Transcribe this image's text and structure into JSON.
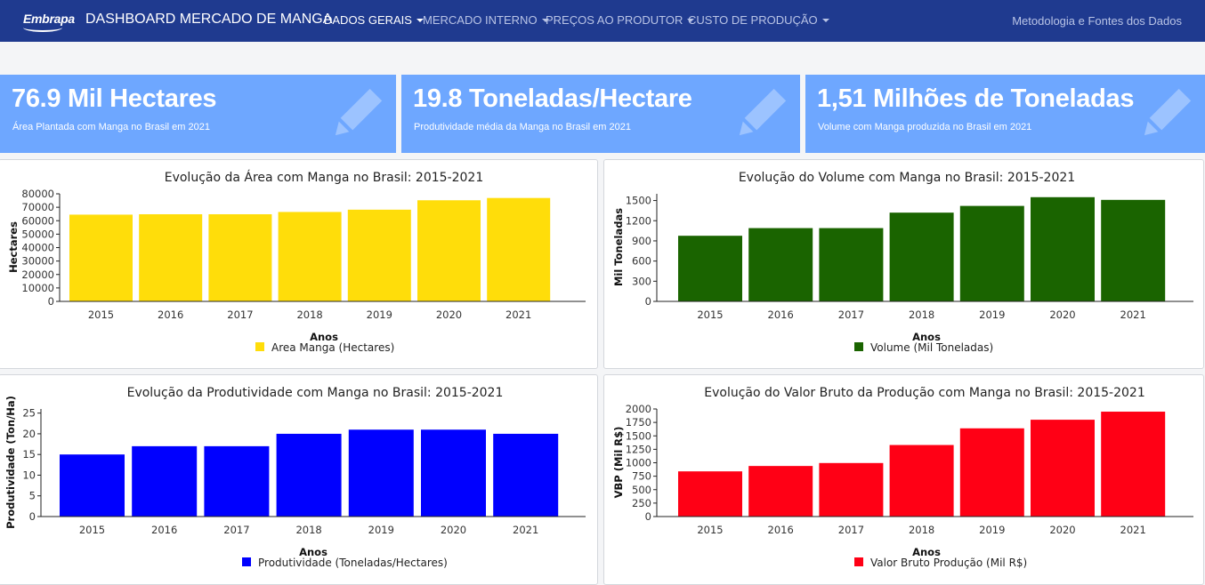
{
  "nav": {
    "logo": "Embrapa",
    "brand": "DASHBOARD MERCADO DE MANGA",
    "menu": [
      {
        "label": "DADOS GERAIS",
        "active": true
      },
      {
        "label": "MERCADO INTERNO",
        "active": false
      },
      {
        "label": "PREÇOS AO PRODUTOR",
        "active": false
      },
      {
        "label": "CUSTO DE PRODUÇÃO",
        "active": false
      }
    ],
    "methodology": "Metodologia e Fontes dos Dados"
  },
  "kpis": [
    {
      "value": "76.9 Mil Hectares",
      "label": "Área Plantada com Manga no Brasil em 2021",
      "icon": "pencil-icon"
    },
    {
      "value": "19.8 Toneladas/Hectare",
      "label": "Produtividade média da Manga no Brasil em 2021",
      "icon": "pencil-icon"
    },
    {
      "value": "1,51 Milhões de Toneladas",
      "label": "Volume com Manga produzida no Brasil em 2021",
      "icon": "pencil-icon"
    }
  ],
  "colors": {
    "navbar": "#1f3a8f",
    "kpi": "#6ea7ff"
  },
  "chart_data": [
    {
      "type": "bar",
      "title": "Evolução da Área com Manga no Brasil: 2015-2021",
      "xlabel": "Anos",
      "ylabel": "Hectares",
      "categories": [
        "2015",
        "2016",
        "2017",
        "2018",
        "2019",
        "2020",
        "2021"
      ],
      "series": [
        {
          "name": "Area Manga (Hectares)",
          "color": "#ffdd0a",
          "values": [
            64500,
            64800,
            64800,
            66500,
            68200,
            75200,
            76900
          ]
        }
      ],
      "ylim": [
        0,
        80000
      ],
      "yticks": [
        0,
        10000,
        20000,
        30000,
        40000,
        50000,
        60000,
        70000,
        80000
      ],
      "legend": "bottom-center",
      "grid": false
    },
    {
      "type": "bar",
      "title": "Evolução do Volume com Manga no Brasil: 2015-2021",
      "xlabel": "Anos",
      "ylabel": "Mil Toneladas",
      "categories": [
        "2015",
        "2016",
        "2017",
        "2018",
        "2019",
        "2020",
        "2021"
      ],
      "series": [
        {
          "name": "Volume (Mil Toneladas)",
          "color": "#1a6400",
          "values": [
            976,
            1090,
            1090,
            1320,
            1420,
            1550,
            1510
          ]
        }
      ],
      "ylim": [
        0,
        1600
      ],
      "yticks": [
        0,
        300,
        600,
        900,
        1200,
        1500
      ],
      "legend": "bottom-center",
      "grid": false
    },
    {
      "type": "bar",
      "title": "Evolução da Produtividade com Manga no Brasil: 2015-2021",
      "xlabel": "Anos",
      "ylabel": "Produtividade (Ton/Ha)",
      "categories": [
        "2015",
        "2016",
        "2017",
        "2018",
        "2019",
        "2020",
        "2021"
      ],
      "series": [
        {
          "name": "Produtividade (Toneladas/Hectares)",
          "color": "#0000ff",
          "values": [
            15,
            17,
            17,
            20,
            21,
            21,
            20
          ]
        }
      ],
      "ylim": [
        0,
        26
      ],
      "yticks": [
        0,
        5,
        10,
        15,
        20,
        25
      ],
      "legend": "bottom-center",
      "grid": false
    },
    {
      "type": "bar",
      "title": "Evolução do Valor Bruto da Produção com Manga no Brasil: 2015-2021",
      "xlabel": "Anos",
      "ylabel": "VBP (Mil R$)",
      "categories": [
        "2015",
        "2016",
        "2017",
        "2018",
        "2019",
        "2020",
        "2021"
      ],
      "series": [
        {
          "name": "Valor Bruto Produção (Mil R$)",
          "color": "#ff0015",
          "values": [
            840,
            940,
            995,
            1330,
            1640,
            1800,
            1950
          ]
        }
      ],
      "ylim": [
        0,
        2000
      ],
      "yticks": [
        0,
        250,
        500,
        750,
        1000,
        1250,
        1500,
        1750,
        2000
      ],
      "legend": "bottom-center",
      "grid": false
    }
  ]
}
